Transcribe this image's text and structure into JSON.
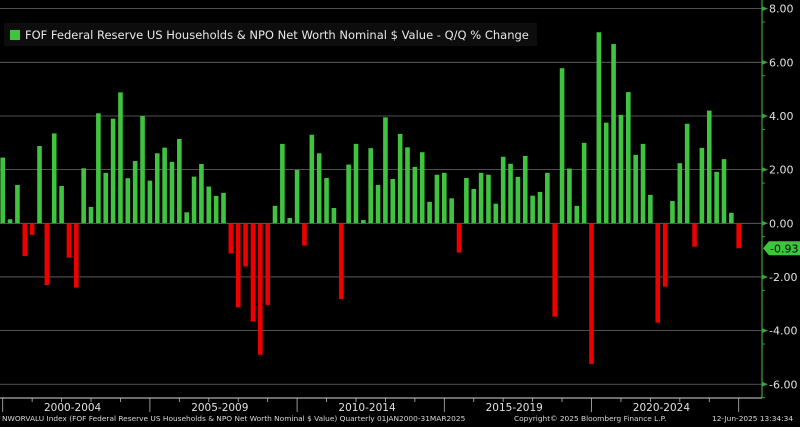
{
  "chart_data": {
    "type": "bar",
    "title": "FOF Federal Reserve US Households & NPO Net Worth Nominal $ Value - Q/Q % Change",
    "frequency": "Quarterly",
    "period": "01JAN2000-31MAR2025",
    "first_quarter": "2000Q1",
    "ylim": [
      -6.5,
      8.5
    ],
    "yticks": [
      8,
      6,
      4,
      2,
      0,
      -2,
      -4,
      -6
    ],
    "ytick_labels": [
      "8.00",
      "6.00",
      "4.00",
      "2.00",
      "0.00",
      "-2.00",
      "-4.00",
      "-6.00"
    ],
    "xtick_labels": [
      "2000-2004",
      "2005-2009",
      "2010-2014",
      "2015-2019",
      "2020-2024"
    ],
    "last_value_label": "-0.93",
    "grid": true,
    "legend_position": "top-left",
    "colors": {
      "positive": "#3fc43f",
      "negative": "#ee0000",
      "axis": "#3fa03f",
      "grid": "#6a6a6a"
    },
    "values": [
      2.45,
      0.15,
      1.43,
      -1.22,
      -0.43,
      2.88,
      -2.3,
      3.35,
      1.39,
      -1.28,
      -2.4,
      2.05,
      0.61,
      4.1,
      1.88,
      3.9,
      4.88,
      1.68,
      2.32,
      4.0,
      1.59,
      2.61,
      2.82,
      2.29,
      3.14,
      0.41,
      1.74,
      2.21,
      1.37,
      1.02,
      1.13,
      -1.12,
      -3.13,
      -1.61,
      -3.66,
      -4.9,
      -3.04,
      0.65,
      2.96,
      0.2,
      1.99,
      -0.83,
      3.3,
      2.61,
      1.69,
      0.57,
      -2.82,
      2.19,
      2.96,
      0.12,
      2.8,
      1.43,
      3.95,
      1.65,
      3.33,
      2.83,
      2.1,
      2.65,
      0.8,
      1.81,
      1.88,
      0.93,
      -1.09,
      1.69,
      1.28,
      1.88,
      1.81,
      0.73,
      2.48,
      2.22,
      1.73,
      2.51,
      1.03,
      1.17,
      1.88,
      -3.48,
      5.78,
      2.04,
      0.65,
      3.0,
      -5.24,
      7.12,
      3.75,
      6.68,
      4.04,
      4.89,
      2.55,
      2.96,
      1.06,
      -3.7,
      -2.36,
      0.83,
      2.24,
      3.71,
      -0.87,
      2.81,
      4.2,
      1.92,
      2.39,
      0.39,
      -0.93
    ]
  },
  "legend": {
    "label": "FOF Federal Reserve US Households & NPO Net Worth Nominal $ Value - Q/Q % Change"
  },
  "footer": {
    "index": "NWORVALU Index (FOF Federal Reserve US Households & NPO Net Worth Nominal $ Value)  Quarterly 01JAN2000-31MAR2025",
    "copyright": "Copyright© 2025 Bloomberg Finance L.P.",
    "timestamp": "12-Jun-2025 13:34:34"
  }
}
